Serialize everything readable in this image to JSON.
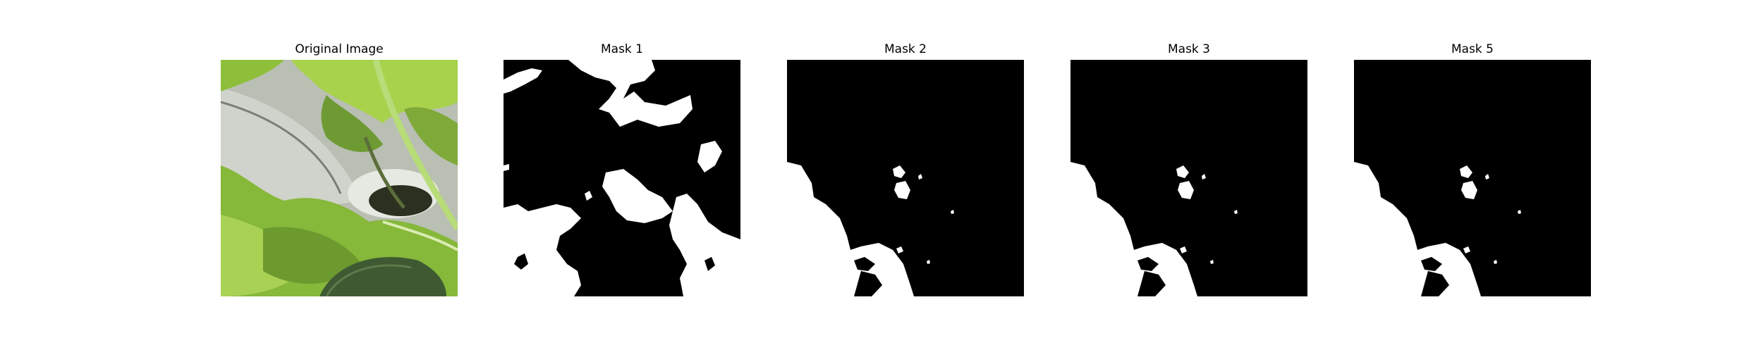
{
  "panels": [
    {
      "title": "Original Image"
    },
    {
      "title": "Mask 1"
    },
    {
      "title": "Mask 2"
    },
    {
      "title": "Mask 3"
    },
    {
      "title": "Mask 5"
    }
  ],
  "colors": {
    "mask_foreground": "#ffffff",
    "mask_background": "#000000",
    "leaf_light": "#a6d04a",
    "leaf_mid": "#6f9e2e",
    "leaf_dark": "#3f6a1e",
    "pot_gray": "#c8ccc4"
  }
}
